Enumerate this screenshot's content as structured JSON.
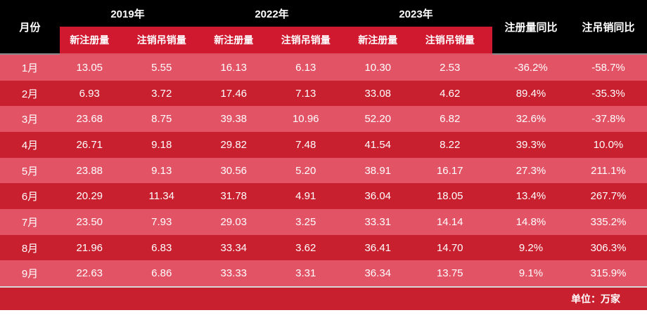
{
  "chart_data": {
    "type": "table",
    "unit_note": "单位：万家",
    "month_header": "月份",
    "year_groups": [
      {
        "year": "2019年",
        "sub_columns": [
          "新注册量",
          "注销吊销量"
        ]
      },
      {
        "year": "2022年",
        "sub_columns": [
          "新注册量",
          "注销吊销量"
        ]
      },
      {
        "year": "2023年",
        "sub_columns": [
          "新注册量",
          "注销吊销量"
        ]
      }
    ],
    "yoy_columns": [
      "注册量同比",
      "注吊销同比"
    ],
    "rows": [
      {
        "month": "1月",
        "values": [
          "13.05",
          "5.55",
          "16.13",
          "6.13",
          "10.30",
          "2.53",
          "-36.2%",
          "-58.7%"
        ]
      },
      {
        "month": "2月",
        "values": [
          "6.93",
          "3.72",
          "17.46",
          "7.13",
          "33.08",
          "4.62",
          "89.4%",
          "-35.3%"
        ]
      },
      {
        "month": "3月",
        "values": [
          "23.68",
          "8.75",
          "39.38",
          "10.96",
          "52.20",
          "6.82",
          "32.6%",
          "-37.8%"
        ]
      },
      {
        "month": "4月",
        "values": [
          "26.71",
          "9.18",
          "29.82",
          "7.48",
          "41.54",
          "8.22",
          "39.3%",
          "10.0%"
        ]
      },
      {
        "month": "5月",
        "values": [
          "23.88",
          "9.13",
          "30.56",
          "5.20",
          "38.91",
          "16.17",
          "27.3%",
          "211.1%"
        ]
      },
      {
        "month": "6月",
        "values": [
          "20.29",
          "11.34",
          "31.78",
          "4.91",
          "36.04",
          "18.05",
          "13.4%",
          "267.7%"
        ]
      },
      {
        "month": "7月",
        "values": [
          "23.50",
          "7.93",
          "29.03",
          "3.25",
          "33.31",
          "14.14",
          "14.8%",
          "335.2%"
        ]
      },
      {
        "month": "8月",
        "values": [
          "21.96",
          "6.83",
          "33.34",
          "3.62",
          "36.41",
          "14.70",
          "9.2%",
          "306.3%"
        ]
      },
      {
        "month": "9月",
        "values": [
          "22.63",
          "6.86",
          "33.33",
          "3.31",
          "36.34",
          "13.75",
          "9.1%",
          "315.9%"
        ]
      }
    ]
  },
  "colors": {
    "header_bg": "#000000",
    "subheader_bg": "#d0182f",
    "row_light": "#e25365",
    "row_dark": "#c8202f",
    "footer_bg": "#c8202f",
    "text": "#ffffff"
  }
}
